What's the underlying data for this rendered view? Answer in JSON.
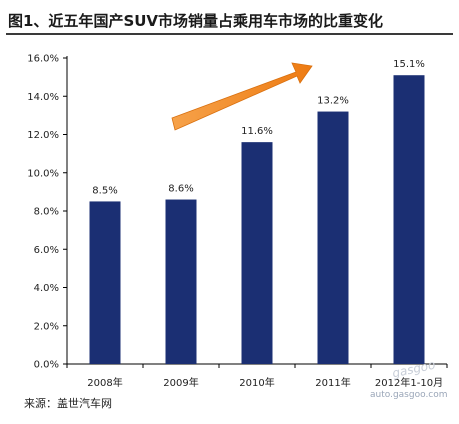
{
  "header": {
    "title": "图1、近五年国产SUV市场销量占乘用车市场的比重变化"
  },
  "footer": {
    "source": "来源：盖世汽车网"
  },
  "watermark": {
    "site": "auto.gasgoo.com",
    "logo": "gasgoo"
  },
  "colors": {
    "bar": "#1b2f73",
    "arrow": "#f0851e",
    "axis": "#000000"
  },
  "chart_data": {
    "type": "bar",
    "title": "图1、近五年国产SUV市场销量占乘用车市场的比重变化",
    "categories": [
      "2008年",
      "2009年",
      "2010年",
      "2011年",
      "2012年1-10月"
    ],
    "values": [
      8.5,
      8.6,
      11.6,
      13.2,
      15.1
    ],
    "data_labels": [
      "8.5%",
      "8.6%",
      "11.6%",
      "13.2%",
      "15.1%"
    ],
    "yticks": [
      "0.0%",
      "2.0%",
      "4.0%",
      "6.0%",
      "8.0%",
      "10.0%",
      "12.0%",
      "14.0%",
      "16.0%"
    ],
    "ylim": [
      0,
      16
    ],
    "xlabel": "",
    "ylabel": "",
    "grid": false,
    "annotation": "upward-trend-arrow"
  }
}
